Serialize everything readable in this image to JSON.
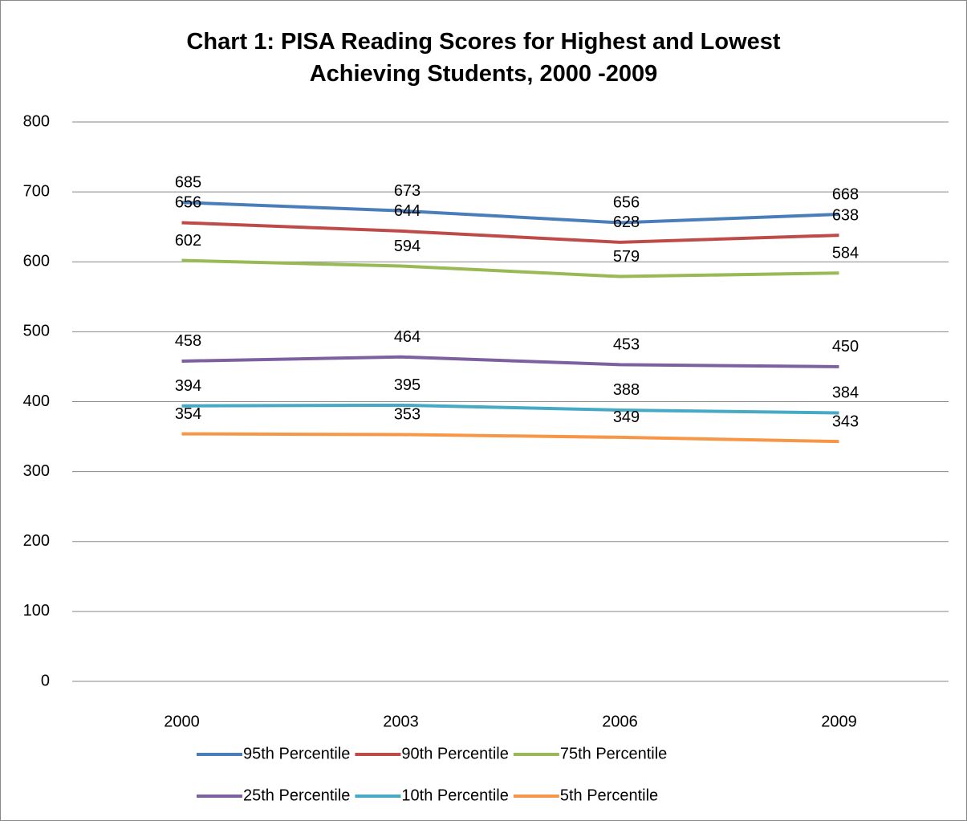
{
  "chart_data": {
    "type": "line",
    "title": "Chart 1: PISA Reading Scores for Highest and Lowest Achieving Students, 2000 -2009",
    "categories": [
      "2000",
      "2003",
      "2006",
      "2009"
    ],
    "series": [
      {
        "name": "95th Percentile",
        "color": "#4a7ebb",
        "values": [
          685,
          673,
          656,
          668
        ]
      },
      {
        "name": "90th Percentile",
        "color": "#be4b48",
        "values": [
          656,
          644,
          628,
          638
        ]
      },
      {
        "name": "75th Percentile",
        "color": "#98b954",
        "values": [
          602,
          594,
          579,
          584
        ]
      },
      {
        "name": "25th Percentile",
        "color": "#7d60a0",
        "values": [
          458,
          464,
          453,
          450
        ]
      },
      {
        "name": "10th Percentile",
        "color": "#46aac5",
        "values": [
          394,
          395,
          388,
          384
        ]
      },
      {
        "name": "5th Percentile",
        "color": "#f79646",
        "values": [
          354,
          353,
          349,
          343
        ]
      }
    ],
    "ylim": [
      0,
      800
    ],
    "yticks": [
      0,
      100,
      200,
      300,
      400,
      500,
      600,
      700,
      800
    ],
    "grid": true,
    "legend": "bottom"
  }
}
